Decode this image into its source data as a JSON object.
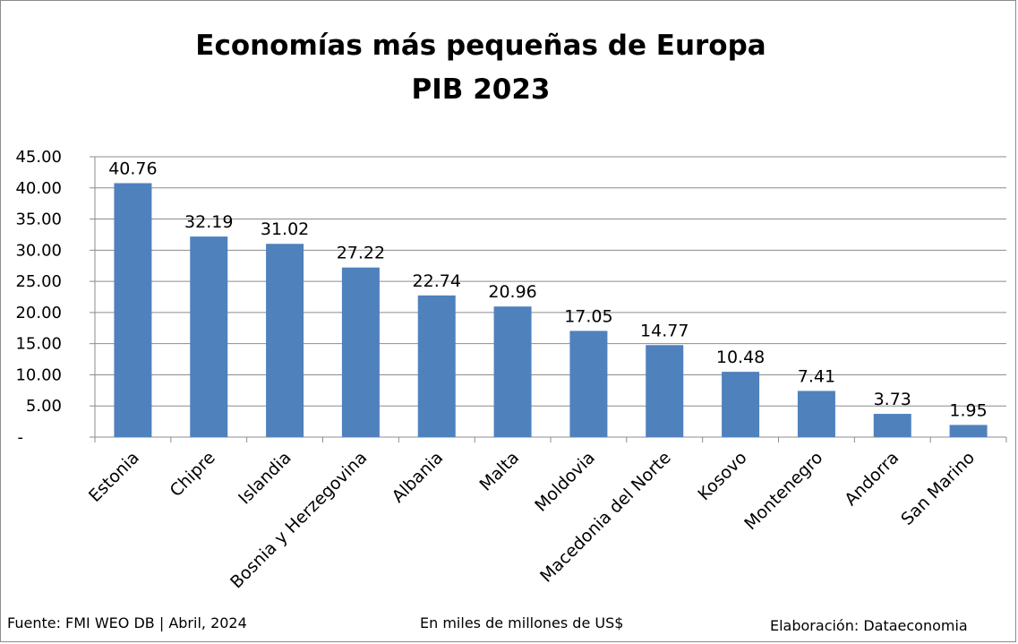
{
  "chart_data": {
    "type": "bar",
    "title": "Economías más pequeñas de Europa",
    "subtitle": "PIB 2023",
    "categories": [
      "Estonia",
      "Chipre",
      "Islandia",
      "Bosnia y Herzegovina",
      "Albania",
      "Malta",
      "Moldovia",
      "Macedonia del Norte",
      "Kosovo",
      "Montenegro",
      "Andorra",
      "San Marino"
    ],
    "values": [
      40.76,
      32.19,
      31.02,
      27.22,
      22.74,
      20.96,
      17.05,
      14.77,
      10.48,
      7.41,
      3.73,
      1.95
    ],
    "value_labels": [
      "40.76",
      "32.19",
      "31.02",
      "27.22",
      "22.74",
      "20.96",
      "17.05",
      "14.77",
      "10.48",
      "7.41",
      "3.73",
      "1.95"
    ],
    "y_ticks": [
      "-",
      "5.00",
      "10.00",
      "15.00",
      "20.00",
      "25.00",
      "30.00",
      "35.00",
      "40.00",
      "45.00"
    ],
    "ylim": [
      0,
      45
    ],
    "grid": true,
    "bar_color": "#4f81bd"
  },
  "footer": {
    "source": "Fuente: FMI WEO DB | Abril, 2024",
    "unit": "En miles de millones de US$",
    "credit": "Elaboración: Dataeconomia"
  }
}
